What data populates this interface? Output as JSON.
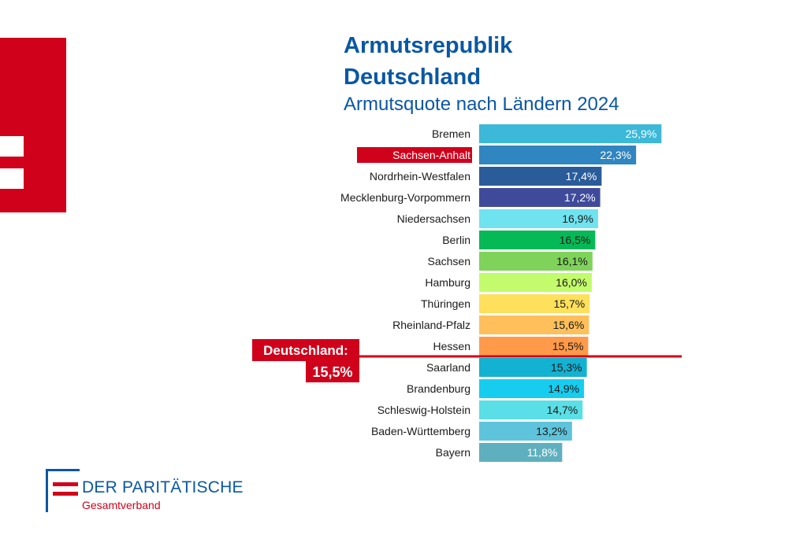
{
  "header": {
    "title_line1": "Armutsrepublik",
    "title_line2": "Deutschland",
    "subtitle": "Armutsquote nach Ländern 2024"
  },
  "chart_data": {
    "type": "bar",
    "orientation": "horizontal",
    "categories": [
      "Bremen",
      "Sachsen-Anhalt",
      "Nordrhein-Westfalen",
      "Mecklenburg-Vorpommern",
      "Niedersachsen",
      "Berlin",
      "Sachsen",
      "Hamburg",
      "Thüringen",
      "Rheinland-Pfalz",
      "Hessen",
      "Saarland",
      "Brandenburg",
      "Schleswig-Holstein",
      "Baden-Württemberg",
      "Bayern"
    ],
    "values": [
      25.9,
      22.3,
      17.4,
      17.2,
      16.9,
      16.5,
      16.1,
      16.0,
      15.7,
      15.6,
      15.5,
      15.3,
      14.9,
      14.7,
      13.2,
      11.8
    ],
    "value_labels": [
      "25,9%",
      "22,3%",
      "17,4%",
      "17,2%",
      "16,9%",
      "16,5%",
      "16,1%",
      "16,0%",
      "15,7%",
      "15,6%",
      "15,5%",
      "15,3%",
      "14,9%",
      "14,7%",
      "13,2%",
      "11,8%"
    ],
    "colors": [
      "#3cb8d8",
      "#2f86c0",
      "#2a5c9a",
      "#3f4b9a",
      "#6fe3ef",
      "#06b957",
      "#7fd35a",
      "#c2fb6b",
      "#ffe05c",
      "#ffbf5a",
      "#ff9a4a",
      "#13b1d2",
      "#16cdf0",
      "#5adfe6",
      "#5ec4dc",
      "#5fb0bf"
    ],
    "value_label_colors": [
      "#ffffff",
      "#ffffff",
      "#ffffff",
      "#ffffff",
      "#1a1a1a",
      "#1a1a1a",
      "#1a1a1a",
      "#1a1a1a",
      "#1a1a1a",
      "#1a1a1a",
      "#1a1a1a",
      "#1a1a1a",
      "#1a1a1a",
      "#1a1a1a",
      "#1a1a1a",
      "#ffffff"
    ],
    "highlighted_category": "Sachsen-Anhalt",
    "highlight_color": "#d0021b",
    "reference_line": {
      "value": 15.5,
      "label_line1": "Deutschland:",
      "label_line2": "15,5%",
      "color": "#d0021b"
    },
    "xlim": [
      0,
      27
    ],
    "grid": false,
    "legend": "none"
  },
  "logo": {
    "name": "DER PARITÄTISCHE",
    "sub": "Gesamtverband"
  },
  "colors": {
    "brand_blue": "#0a57a4",
    "brand_red": "#d0021b"
  }
}
